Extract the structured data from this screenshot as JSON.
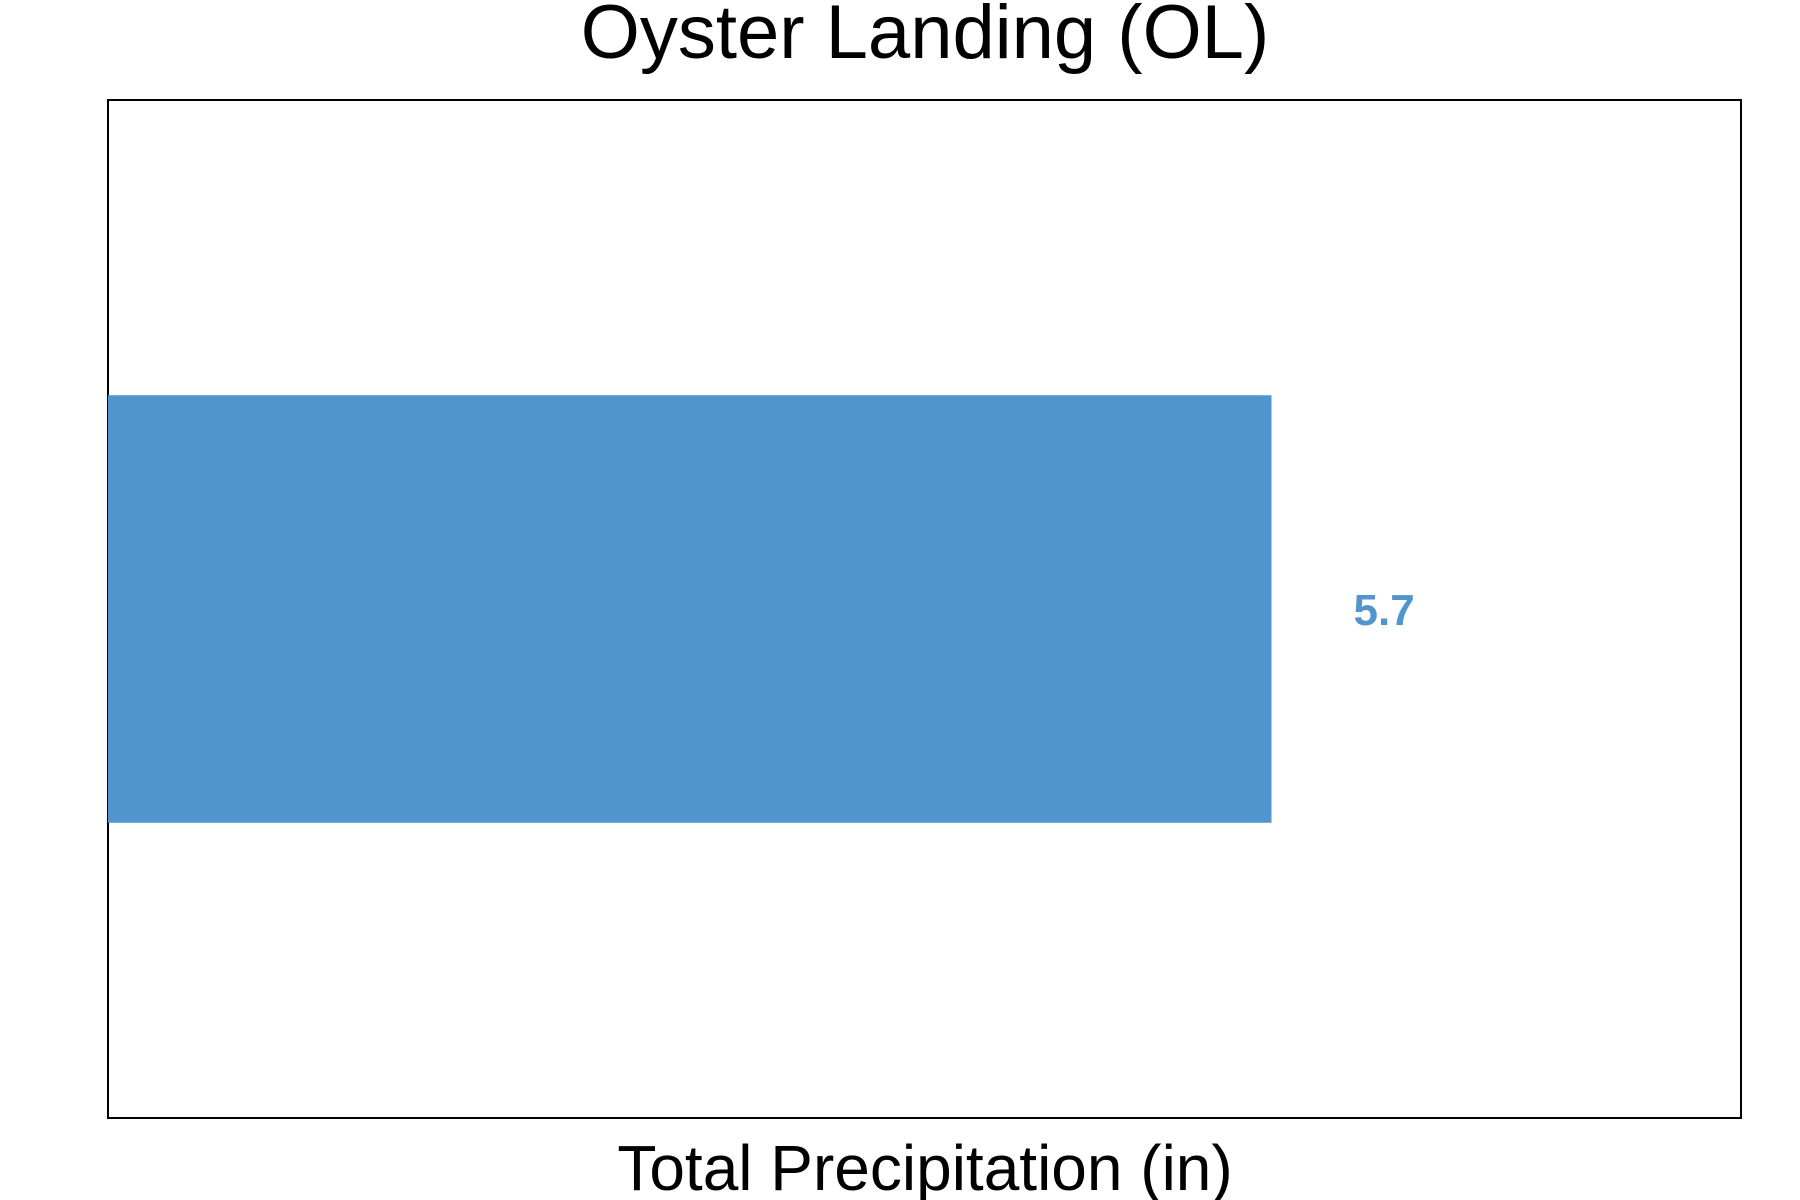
{
  "chart_data": {
    "type": "bar",
    "orientation": "horizontal",
    "title": "Oyster Landing (OL)",
    "xlabel": "Total Precipitation (in)",
    "ylabel": "",
    "categories": [
      ""
    ],
    "values": [
      5.7
    ],
    "value_labels": [
      "5.7"
    ],
    "xlim": [
      0,
      8.0
    ],
    "grid": false,
    "legend": "none",
    "colors": {
      "bar": "#5195CE",
      "value_label": "#5195CE",
      "frame": "#000000"
    }
  }
}
